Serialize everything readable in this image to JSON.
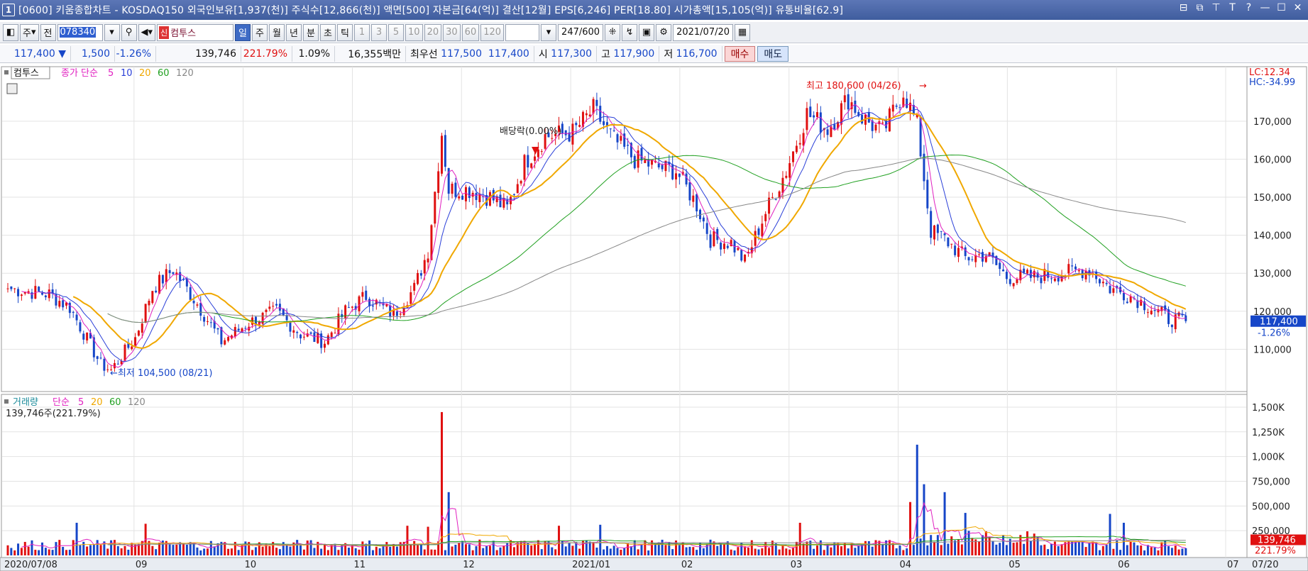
{
  "window": {
    "number": "1",
    "title": "[0600] 키움종합차트 - KOSDAQ150 외국인보유[1,937(천)] 주식수[12,866(천)] 액면[500] 자본금[64(억)] 결산[12월] EPS[6,246] PER[18.80] 시가총액[15,105(억)] 유통비율[62.9]",
    "controls": [
      "⊟",
      "⧉",
      "⊤",
      "T",
      "?",
      "—",
      "☐",
      "✕"
    ]
  },
  "toolbar": {
    "period_mode": "주",
    "whole_button": "전",
    "code_value": "078340",
    "stock_badge": "신",
    "stock_name": "컴투스",
    "interval_buttons": [
      "일",
      "주",
      "월",
      "년",
      "분",
      "초",
      "틱"
    ],
    "active_interval": "일",
    "number_buttons": [
      "1",
      "3",
      "5",
      "10",
      "20",
      "30",
      "60",
      "120"
    ],
    "count_value": "247",
    "count_total": "/600",
    "date_value": "2021/07/20"
  },
  "quote": {
    "price": "117,400",
    "change_arrow": "▼",
    "change": "1,500",
    "change_rate": "-1.26%",
    "volume": "139,746",
    "volume_ratio": "221.79%",
    "turnover": "1.09%",
    "amount": "16,355백만",
    "best_quote_label": "최우선",
    "ask": "117,500",
    "bid": "117,400",
    "open_label": "시",
    "open": "117,300",
    "high_label": "고",
    "high": "117,900",
    "low_label": "저",
    "low": "116,700",
    "buy_label": "매수",
    "sell_label": "매도"
  },
  "colors": {
    "up": "#e01010",
    "down": "#1646c8",
    "ma5": "#e020c0",
    "ma10": "#2a3fd8",
    "ma20": "#f0a800",
    "ma60": "#20a020",
    "ma120": "#888888"
  },
  "chart_data": [
    {
      "type": "candlestick",
      "title": "컴투스",
      "legend": {
        "price_label": "종가 단순",
        "items": [
          "5",
          "10",
          "20",
          "60",
          "120"
        ]
      },
      "right_top_labels": [
        "LC:12.34",
        "HC:-34.99"
      ],
      "y_ticks": [
        "170,000",
        "160,000",
        "150,000",
        "140,000",
        "130,000",
        "120,000",
        "110,000"
      ],
      "ylim": [
        100000,
        180600
      ],
      "current_price_label": "117,400",
      "current_rate_label": "-1.26%",
      "annotations": {
        "high": "최고 180,600 (04/26)",
        "low": "←최저 104,500 (08/21)",
        "dividend": "배당락(0.00%)"
      },
      "ohlc_keypoints": [
        {
          "i": 0,
          "close": 126000
        },
        {
          "i": 12,
          "close": 124500
        },
        {
          "i": 18,
          "close": 121000
        },
        {
          "i": 27,
          "close": 106000
        },
        {
          "i": 30,
          "close": 104500
        },
        {
          "i": 37,
          "close": 113000
        },
        {
          "i": 42,
          "close": 126000
        },
        {
          "i": 48,
          "close": 131000
        },
        {
          "i": 55,
          "close": 122000
        },
        {
          "i": 62,
          "close": 112000
        },
        {
          "i": 70,
          "close": 117000
        },
        {
          "i": 78,
          "close": 120000
        },
        {
          "i": 85,
          "close": 114000
        },
        {
          "i": 92,
          "close": 112000
        },
        {
          "i": 98,
          "close": 120000
        },
        {
          "i": 104,
          "close": 124000
        },
        {
          "i": 112,
          "close": 119000
        },
        {
          "i": 118,
          "close": 126000
        },
        {
          "i": 122,
          "close": 136000
        },
        {
          "i": 126,
          "close": 167000
        },
        {
          "i": 128,
          "close": 152000
        },
        {
          "i": 134,
          "close": 152000
        },
        {
          "i": 140,
          "close": 150000
        },
        {
          "i": 145,
          "close": 147000
        },
        {
          "i": 150,
          "close": 159000
        },
        {
          "i": 156,
          "close": 166000
        },
        {
          "i": 164,
          "close": 167000
        },
        {
          "i": 170,
          "close": 173000
        },
        {
          "i": 176,
          "close": 165000
        },
        {
          "i": 182,
          "close": 160000
        },
        {
          "i": 188,
          "close": 158000
        },
        {
          "i": 194,
          "close": 157000
        },
        {
          "i": 200,
          "close": 148000
        },
        {
          "i": 204,
          "close": 139000
        },
        {
          "i": 210,
          "close": 138000
        },
        {
          "i": 214,
          "close": 133000
        },
        {
          "i": 220,
          "close": 146000
        },
        {
          "i": 226,
          "close": 157000
        },
        {
          "i": 232,
          "close": 172000
        },
        {
          "i": 238,
          "close": 168000
        },
        {
          "i": 244,
          "close": 176000
        },
        {
          "i": 248,
          "close": 171000
        },
        {
          "i": 254,
          "close": 167000
        },
        {
          "i": 260,
          "close": 178000
        },
        {
          "i": 264,
          "close": 169000
        },
        {
          "i": 268,
          "close": 141000
        },
        {
          "i": 272,
          "close": 139000
        },
        {
          "i": 278,
          "close": 134000
        },
        {
          "i": 284,
          "close": 135000
        },
        {
          "i": 290,
          "close": 129000
        },
        {
          "i": 298,
          "close": 129000
        },
        {
          "i": 306,
          "close": 130000
        },
        {
          "i": 314,
          "close": 131000
        },
        {
          "i": 320,
          "close": 126000
        },
        {
          "i": 326,
          "close": 124000
        },
        {
          "i": 332,
          "close": 121000
        },
        {
          "i": 337,
          "close": 118000
        },
        {
          "i": 342,
          "close": 117400
        }
      ],
      "bars_count": 343
    },
    {
      "type": "bar",
      "title": "거래량",
      "legend": {
        "label": "단순",
        "items": [
          "5",
          "20",
          "60",
          "120"
        ]
      },
      "info_label": "139,746주(221.79%)",
      "y_ticks": [
        "1,500K",
        "1,250K",
        "1,000K",
        "750,000",
        "500,000",
        "250,000"
      ],
      "ylim": [
        0,
        1550000
      ],
      "current_volume_label": "139,746",
      "current_ratio_label": "221.79%",
      "volume_spikes": [
        {
          "i": 20,
          "value": 330000
        },
        {
          "i": 40,
          "value": 320000
        },
        {
          "i": 116,
          "value": 300000
        },
        {
          "i": 122,
          "value": 290000
        },
        {
          "i": 126,
          "value": 1450000
        },
        {
          "i": 128,
          "value": 640000
        },
        {
          "i": 160,
          "value": 300000
        },
        {
          "i": 172,
          "value": 310000
        },
        {
          "i": 230,
          "value": 330000
        },
        {
          "i": 262,
          "value": 540000
        },
        {
          "i": 264,
          "value": 1120000
        },
        {
          "i": 266,
          "value": 720000
        },
        {
          "i": 272,
          "value": 640000
        },
        {
          "i": 278,
          "value": 430000
        },
        {
          "i": 320,
          "value": 420000
        },
        {
          "i": 324,
          "value": 330000
        }
      ]
    }
  ],
  "x_axis": {
    "labels": [
      "2020/07/08",
      "09",
      "10",
      "11",
      "12",
      "2021/01",
      "02",
      "03",
      "04",
      "05",
      "06",
      "07",
      "07/20"
    ]
  }
}
